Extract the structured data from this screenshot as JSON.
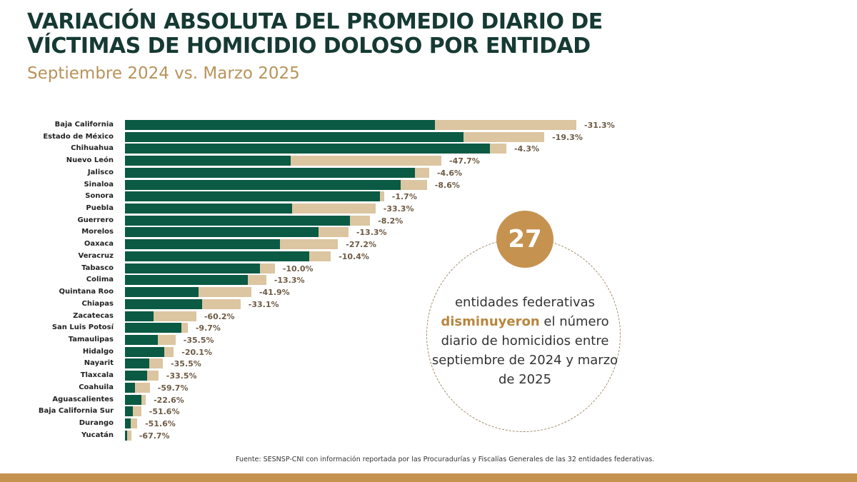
{
  "header": {
    "title_line1": "VARIACIÓN ABSOLUTA DEL PROMEDIO DIARIO DE",
    "title_line2": "VÍCTIMAS DE HOMICIDIO DOLOSO POR ENTIDAD",
    "subtitle": "Septiembre 2024 vs. Marzo 2025"
  },
  "callout": {
    "number": "27",
    "text_before": "entidades federativas",
    "highlight": "disminuyeron",
    "text_after": "el número diario de homicidios entre septiembre de 2024 y marzo de 2025"
  },
  "source": "Fuente: SESNSP-CNI con información reportada por las Procuradurías y Fiscalías Generales de las 32 entidades federativas.",
  "colors": {
    "march_2025": "#0b5a44",
    "september_2024": "#dcc5a1",
    "accent": "#c69250",
    "title": "#163a33"
  },
  "chart_data": {
    "type": "bar",
    "orientation": "horizontal",
    "grid": false,
    "axis_values_shown": false,
    "categories": [
      "Baja California",
      "Estado de México",
      "Chihuahua",
      "Nuevo León",
      "Jalisco",
      "Sinaloa",
      "Sonora",
      "Puebla",
      "Guerrero",
      "Morelos",
      "Oaxaca",
      "Veracruz",
      "Tabasco",
      "Colima",
      "Quintana Roo",
      "Chiapas",
      "Zacatecas",
      "San Luis Potosí",
      "Tamaulipas",
      "Hidalgo",
      "Nayarit",
      "Tlaxcala",
      "Coahuila",
      "Aguascalientes",
      "Baja California Sur",
      "Durango",
      "Yucatán"
    ],
    "series": [
      {
        "period": "septiembre 2024",
        "values_relative": [
          100,
          92.9,
          84.5,
          70.1,
          67.4,
          66.9,
          57.4,
          55.5,
          54.3,
          49.5,
          47.2,
          45.6,
          33.2,
          31.3,
          28.0,
          25.6,
          15.8,
          13.9,
          11.2,
          10.8,
          8.4,
          7.4,
          5.5,
          4.6,
          3.6,
          2.7,
          1.4
        ]
      }
    ],
    "variation_labels": [
      "-31.3%",
      "-19.3%",
      "-4.3%",
      "-47.7%",
      "-4.6%",
      "-8.6%",
      "-1.7%",
      "-33.3%",
      "-8.2%",
      "-13.3%",
      "-27.2%",
      "-10.4%",
      "-10.0%",
      "-13.3%",
      "-41.9%",
      "-33.1%",
      "-60.2%",
      "-9.7%",
      "-35.5%",
      "-20.1%",
      "-35.5%",
      "-33.5%",
      "-59.7%",
      "-22.6%",
      "-51.6%",
      "-51.6%",
      "-67.7%"
    ],
    "variation_pct": [
      -31.3,
      -19.3,
      -4.3,
      -47.7,
      -4.6,
      -8.6,
      -1.7,
      -33.3,
      -8.2,
      -13.3,
      -27.2,
      -10.4,
      -10.0,
      -13.3,
      -41.9,
      -33.1,
      -60.2,
      -9.7,
      -35.5,
      -20.1,
      -35.5,
      -33.5,
      -59.7,
      -22.6,
      -51.6,
      -51.6,
      -67.7
    ]
  }
}
